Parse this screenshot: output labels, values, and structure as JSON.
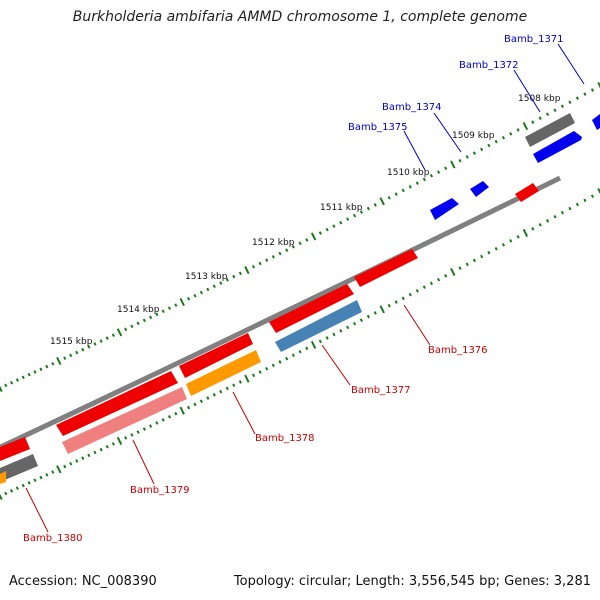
{
  "title": "Burkholderia ambifaria AMMD chromosome 1, complete genome",
  "footer": {
    "accession": "Accession: NC_008390",
    "summary": "Topology: circular; Length: 3,556,545 bp; Genes: 3,281"
  },
  "colors": {
    "backbone": "#808080",
    "tick": "#1a7a1a",
    "top_label": "#0000c8",
    "bottom_label": "#c80000"
  },
  "scale_labels": [
    "1508 kbp",
    "1509 kbp",
    "1510 kbp",
    "1511 kbp",
    "1512 kbp",
    "1513 kbp",
    "1514 kbp",
    "1515 kbp"
  ],
  "gene_labels": {
    "top": [
      "Bamb_1371",
      "Bamb_1372",
      "Bamb_1374",
      "Bamb_1375"
    ],
    "bottom": [
      "Bamb_1376",
      "Bamb_1377",
      "Bamb_1378",
      "Bamb_1379",
      "Bamb_1380"
    ]
  }
}
